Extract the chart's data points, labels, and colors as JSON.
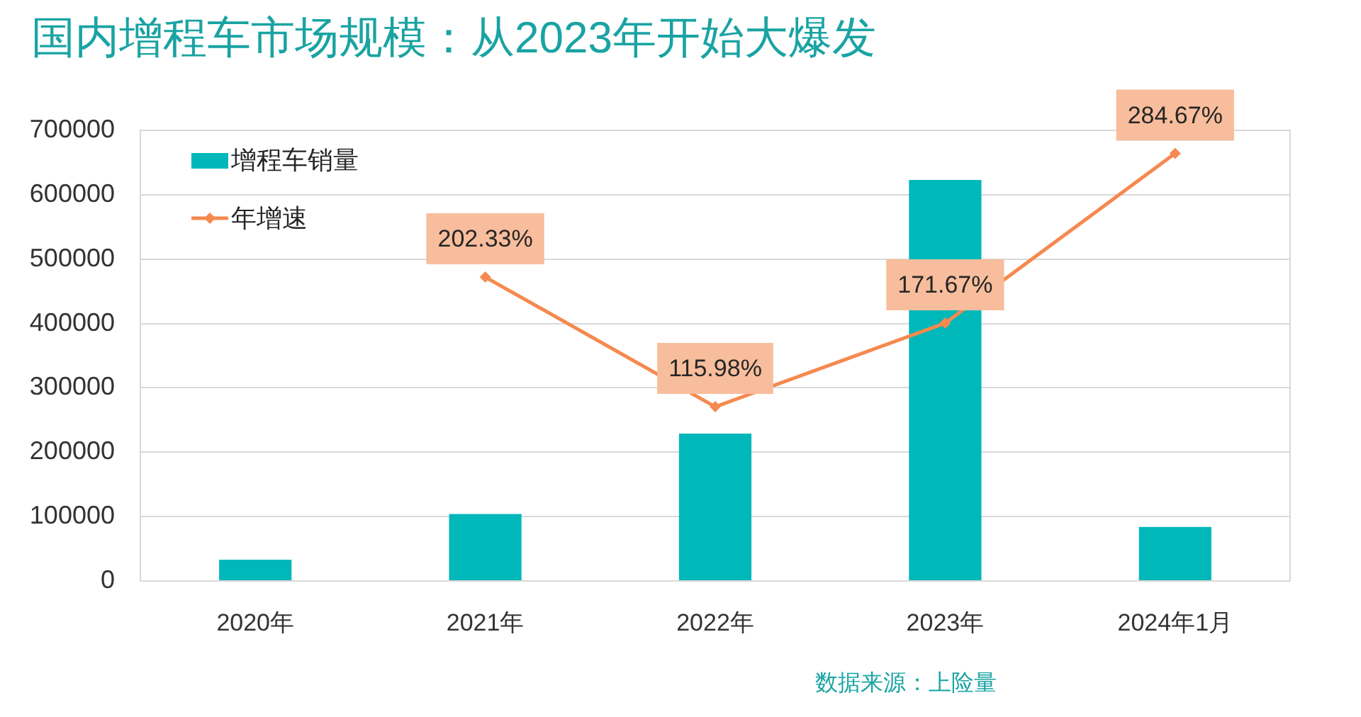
{
  "chart_data": {
    "type": "bar",
    "title": "国内增程车市场规模：从2023年开始大爆发",
    "categories": [
      "2020年",
      "2021年",
      "2022年",
      "2023年",
      "2024年1月"
    ],
    "series": [
      {
        "name": "增程车销量",
        "color": "#00b7b9",
        "values": [
          33000,
          104000,
          229000,
          623000,
          84000
        ]
      },
      {
        "name": "年增速",
        "type": "line",
        "axis": "y2",
        "color": "#f5894f",
        "values": [
          null,
          202.33,
          115.98,
          171.67,
          284.67
        ],
        "value_labels": [
          null,
          "202.33%",
          "115.98%",
          "171.67%",
          "284.67%"
        ]
      }
    ],
    "ylim": [
      0,
      700000
    ],
    "yticks": [
      0,
      100000,
      200000,
      300000,
      400000,
      500000,
      600000,
      700000
    ],
    "y2lim": [
      0,
      300
    ],
    "tick_labels": "xy",
    "grid": "y",
    "legend": "top left",
    "marker": "diamond",
    "annotations": [
      "数据来源：上险量"
    ]
  }
}
